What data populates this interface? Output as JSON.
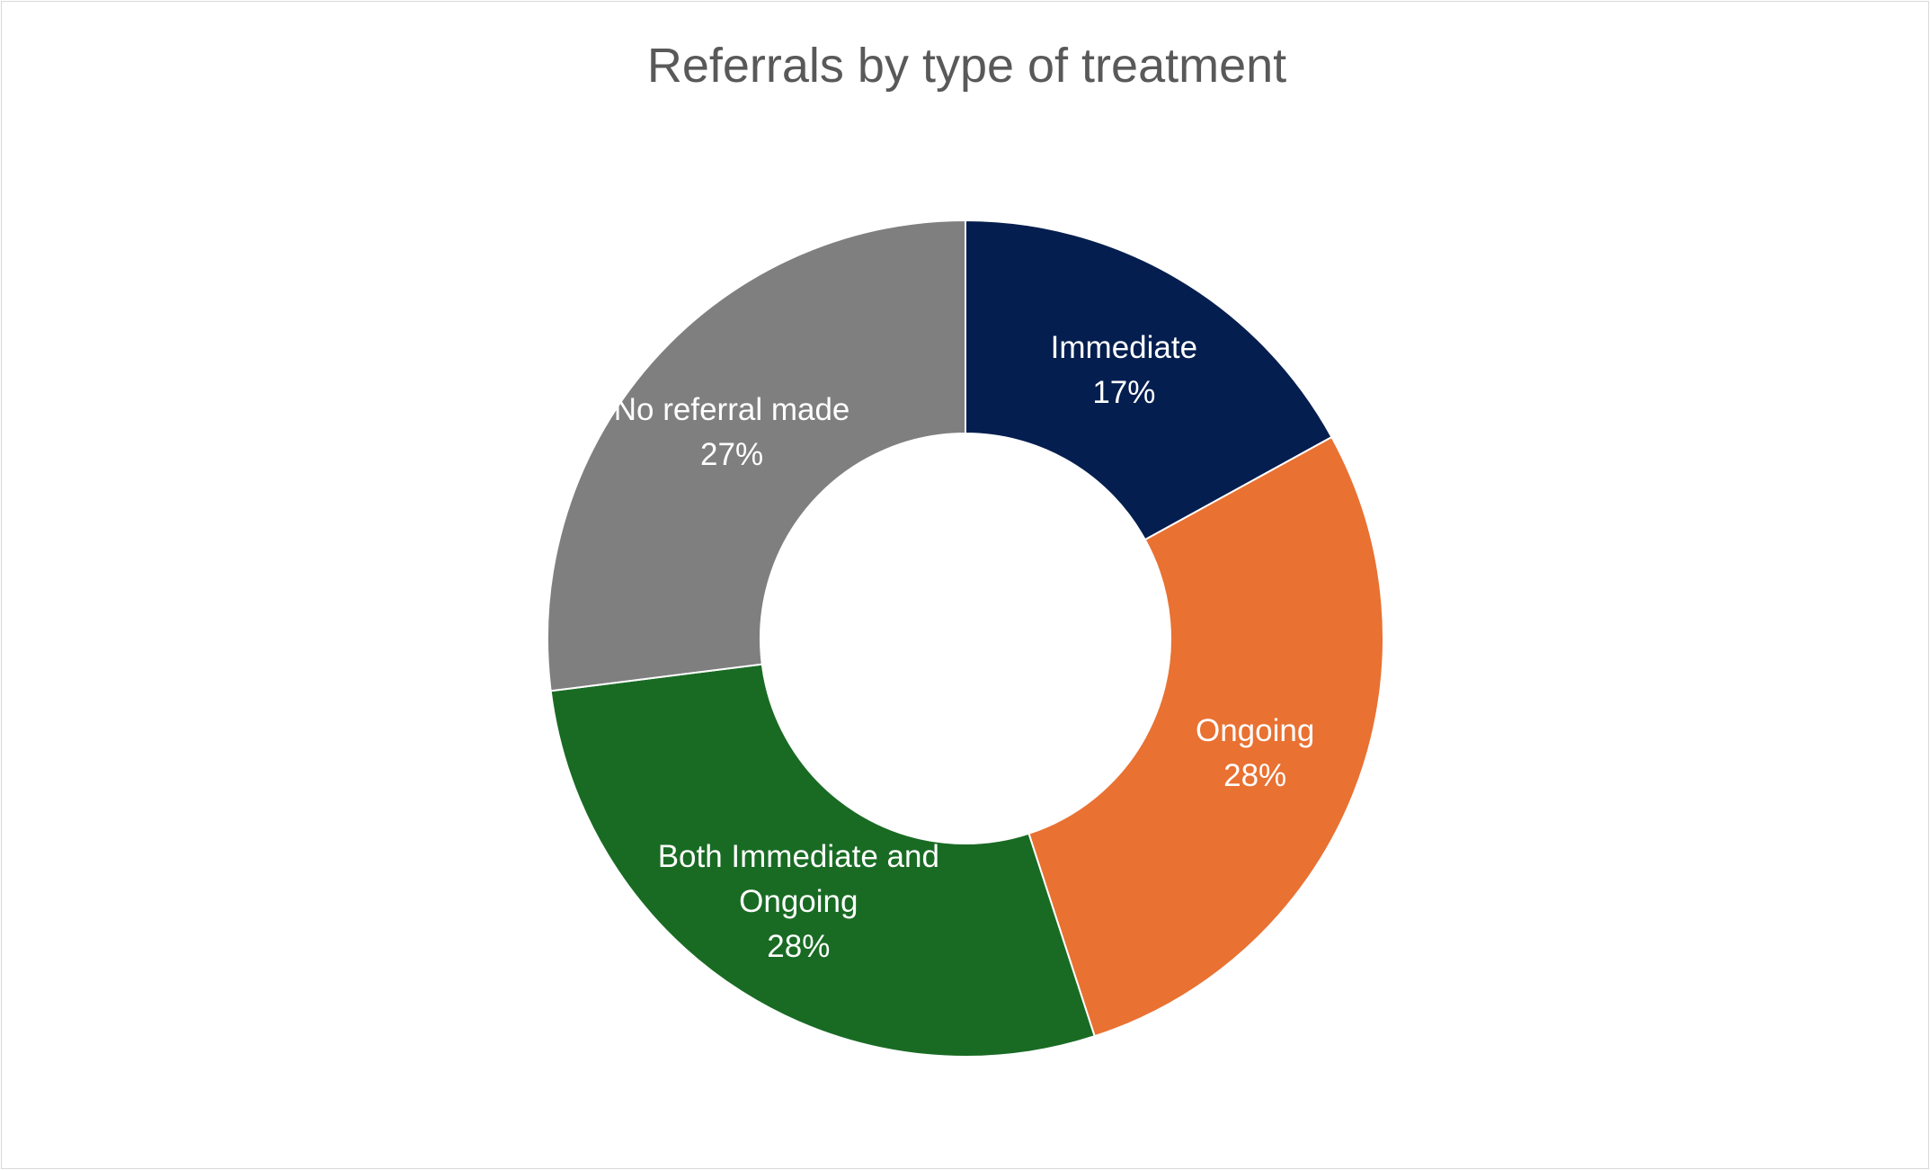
{
  "chart_data": {
    "type": "donut",
    "title": "Referrals by type of treatment",
    "categories": [
      "Immediate",
      "Ongoing",
      "Both Immediate and Ongoing",
      "No referral made"
    ],
    "values": [
      17,
      28,
      28,
      27
    ],
    "value_labels": [
      "17%",
      "28%",
      "28%",
      "27%"
    ],
    "colors": [
      "#041e4f",
      "#e97132",
      "#196b24",
      "#7f7f7f"
    ]
  }
}
